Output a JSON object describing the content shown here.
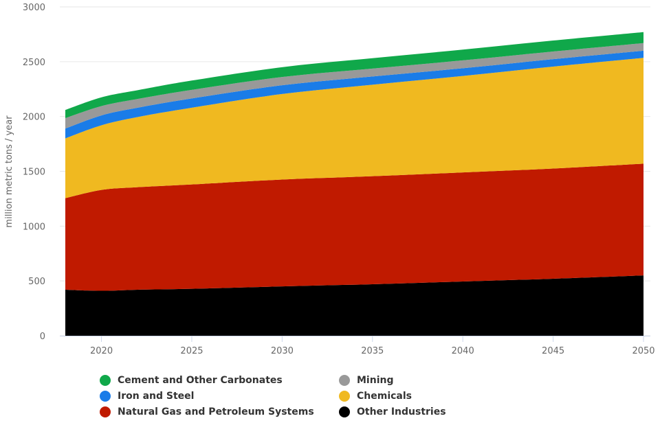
{
  "chart_data": {
    "type": "area",
    "stacked": true,
    "title": "",
    "xlabel": "",
    "ylabel": "million metric tons / year",
    "ylim": [
      0,
      3000
    ],
    "xlim": [
      2018,
      2050
    ],
    "yticks": [
      0,
      500,
      1000,
      1500,
      2000,
      2500,
      3000
    ],
    "xticks": [
      2020,
      2025,
      2030,
      2035,
      2040,
      2045,
      2050
    ],
    "grid": true,
    "legend_position": "bottom",
    "x": [
      2018,
      2020,
      2022,
      2025,
      2030,
      2035,
      2040,
      2045,
      2050
    ],
    "series": [
      {
        "name": "Other Industries",
        "color": "#000000",
        "values": [
          420,
          410,
          420,
          428,
          450,
          470,
          495,
          520,
          550
        ]
      },
      {
        "name": "Natural Gas and Petroleum Systems",
        "color": "#c01a00",
        "values": [
          835,
          920,
          935,
          952,
          975,
          985,
          995,
          1005,
          1020
        ]
      },
      {
        "name": "Chemicals",
        "color": "#f0b920",
        "values": [
          545,
          590,
          640,
          700,
          780,
          835,
          880,
          930,
          965
        ]
      },
      {
        "name": "Iron and Steel",
        "color": "#1a7ce8",
        "values": [
          90,
          90,
          85,
          85,
          80,
          75,
          70,
          68,
          65
        ]
      },
      {
        "name": "Mining",
        "color": "#999999",
        "values": [
          95,
          85,
          80,
          78,
          75,
          72,
          72,
          70,
          70
        ]
      },
      {
        "name": "Cement and Other Carbonates",
        "color": "#10a84a",
        "values": [
          75,
          80,
          80,
          85,
          90,
          95,
          98,
          100,
          100
        ]
      }
    ]
  },
  "legend": [
    {
      "label": "Cement and Other Carbonates",
      "color": "#10a84a"
    },
    {
      "label": "Mining",
      "color": "#999999"
    },
    {
      "label": "Iron and Steel",
      "color": "#1a7ce8"
    },
    {
      "label": "Chemicals",
      "color": "#f0b920"
    },
    {
      "label": "Natural Gas and Petroleum Systems",
      "color": "#c01a00"
    },
    {
      "label": "Other Industries",
      "color": "#000000"
    }
  ]
}
